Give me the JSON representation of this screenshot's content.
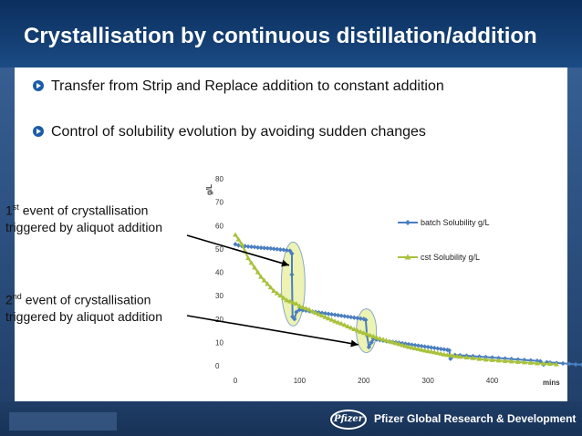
{
  "slide": {
    "title": "Crystallisation by continuous distillation/addition",
    "bullets": [
      "Transfer from Strip and Replace addition to constant addition",
      "Control of solubility evolution by avoiding sudden changes"
    ],
    "callouts": [
      {
        "sup": "st",
        "num": "1",
        "line1_rest": " event of crystallisation",
        "line2": "triggered by aliquot addition"
      },
      {
        "sup": "nd",
        "num": "2",
        "line1_rest": " event of crystallisation",
        "line2": "triggered by aliquot addition"
      }
    ],
    "footer": {
      "logo": "Pfizer",
      "text": "Pfizer Global Research & Development"
    }
  },
  "colors": {
    "title_bar": "#143f74",
    "batch": "#4a7ec0",
    "cst": "#a8c23c",
    "ellipse_fill": "#e6ef9a",
    "ellipse_stroke": "#8aa8c8"
  },
  "chart_data": {
    "type": "line",
    "ylabel": "g/L",
    "xlabel": "mins",
    "xlim": [
      0,
      500
    ],
    "ylim": [
      0,
      80
    ],
    "x_ticks": [
      0,
      100,
      200,
      300,
      400
    ],
    "y_ticks": [
      0,
      10,
      20,
      30,
      40,
      50,
      60,
      70,
      80
    ],
    "legend_position": "right",
    "grid": false,
    "series": [
      {
        "name": "batch Solubility g/L",
        "color": "#4a7ec0",
        "marker": "diamond",
        "points": [
          [
            0,
            52
          ],
          [
            5,
            51.5
          ],
          [
            10,
            51.3
          ],
          [
            15,
            51.2
          ],
          [
            20,
            51
          ],
          [
            25,
            50.9
          ],
          [
            30,
            50.8
          ],
          [
            35,
            50.6
          ],
          [
            40,
            50.5
          ],
          [
            45,
            50.4
          ],
          [
            50,
            50.3
          ],
          [
            55,
            50.2
          ],
          [
            60,
            50
          ],
          [
            65,
            49.9
          ],
          [
            70,
            49.7
          ],
          [
            75,
            49.6
          ],
          [
            80,
            49.4
          ],
          [
            85,
            49.2
          ],
          [
            88,
            48
          ],
          [
            88,
            39
          ],
          [
            89,
            21
          ],
          [
            92,
            20
          ],
          [
            95,
            23
          ],
          [
            100,
            24
          ],
          [
            105,
            23.8
          ],
          [
            110,
            23.6
          ],
          [
            115,
            23.4
          ],
          [
            120,
            23.2
          ],
          [
            125,
            23
          ],
          [
            130,
            22.8
          ],
          [
            135,
            22.6
          ],
          [
            140,
            22.4
          ],
          [
            145,
            22.2
          ],
          [
            150,
            22
          ],
          [
            155,
            21.8
          ],
          [
            160,
            21.6
          ],
          [
            165,
            21.4
          ],
          [
            170,
            21.2
          ],
          [
            175,
            21
          ],
          [
            180,
            20.8
          ],
          [
            185,
            20.6
          ],
          [
            190,
            20.4
          ],
          [
            195,
            20.2
          ],
          [
            200,
            20
          ],
          [
            203,
            19.6
          ],
          [
            205,
            13
          ],
          [
            208,
            8
          ],
          [
            212,
            10
          ],
          [
            215,
            11.5
          ],
          [
            220,
            11.2
          ],
          [
            225,
            11
          ],
          [
            230,
            10.8
          ],
          [
            235,
            10.6
          ],
          [
            240,
            10.4
          ],
          [
            245,
            10.2
          ],
          [
            250,
            10
          ],
          [
            255,
            9.8
          ],
          [
            260,
            9.6
          ],
          [
            265,
            9.4
          ],
          [
            270,
            9.2
          ],
          [
            275,
            9
          ],
          [
            280,
            8.8
          ],
          [
            285,
            8.6
          ],
          [
            290,
            8.4
          ],
          [
            295,
            8.2
          ],
          [
            300,
            8
          ],
          [
            305,
            7.8
          ],
          [
            310,
            7.6
          ],
          [
            315,
            7.4
          ],
          [
            320,
            7.2
          ],
          [
            325,
            7
          ],
          [
            330,
            6.8
          ],
          [
            333,
            6.6
          ],
          [
            335,
            3
          ],
          [
            338,
            4
          ],
          [
            342,
            4.6
          ],
          [
            350,
            4.5
          ],
          [
            360,
            4.3
          ],
          [
            370,
            4.1
          ],
          [
            380,
            3.9
          ],
          [
            390,
            3.7
          ],
          [
            400,
            3.5
          ],
          [
            410,
            3.3
          ],
          [
            420,
            3.1
          ],
          [
            430,
            2.9
          ],
          [
            440,
            2.7
          ],
          [
            450,
            2.5
          ],
          [
            460,
            2.3
          ],
          [
            470,
            2.1
          ],
          [
            475,
            1.9
          ],
          [
            480,
            0.5
          ],
          [
            485,
            1.5
          ],
          [
            490,
            1.4
          ],
          [
            500,
            1.2
          ],
          [
            510,
            1
          ],
          [
            520,
            0.8
          ],
          [
            530,
            0.6
          ],
          [
            540,
            0.5
          ],
          [
            550,
            0.4
          ]
        ]
      },
      {
        "name": "cst Solubility g/L",
        "color": "#a8c23c",
        "marker": "triangle",
        "points": [
          [
            0,
            56
          ],
          [
            5,
            54
          ],
          [
            10,
            52
          ],
          [
            15,
            49
          ],
          [
            20,
            46
          ],
          [
            25,
            44
          ],
          [
            30,
            42
          ],
          [
            35,
            40
          ],
          [
            40,
            38
          ],
          [
            45,
            36.5
          ],
          [
            50,
            35
          ],
          [
            55,
            33.5
          ],
          [
            60,
            32
          ],
          [
            65,
            31
          ],
          [
            70,
            30
          ],
          [
            75,
            29
          ],
          [
            80,
            28
          ],
          [
            85,
            27.5
          ],
          [
            90,
            27
          ],
          [
            95,
            26.5
          ],
          [
            100,
            25.5
          ],
          [
            105,
            25
          ],
          [
            110,
            24.5
          ],
          [
            115,
            24
          ],
          [
            120,
            23.2
          ],
          [
            125,
            22.6
          ],
          [
            130,
            22
          ],
          [
            135,
            21.4
          ],
          [
            140,
            20.8
          ],
          [
            145,
            20.2
          ],
          [
            150,
            19.6
          ],
          [
            155,
            19
          ],
          [
            160,
            18.5
          ],
          [
            165,
            18
          ],
          [
            170,
            17.4
          ],
          [
            175,
            16.8
          ],
          [
            180,
            16.2
          ],
          [
            185,
            15.6
          ],
          [
            190,
            15
          ],
          [
            195,
            14.5
          ],
          [
            200,
            14
          ],
          [
            205,
            13.5
          ],
          [
            210,
            13
          ],
          [
            215,
            12.5
          ],
          [
            220,
            12
          ],
          [
            225,
            11.6
          ],
          [
            230,
            11.2
          ],
          [
            235,
            10.8
          ],
          [
            240,
            10.4
          ],
          [
            245,
            10
          ],
          [
            250,
            9.6
          ],
          [
            255,
            9.2
          ],
          [
            260,
            8.8
          ],
          [
            265,
            8.4
          ],
          [
            270,
            8
          ],
          [
            275,
            7.7
          ],
          [
            280,
            7.4
          ],
          [
            285,
            7.1
          ],
          [
            290,
            6.8
          ],
          [
            295,
            6.5
          ],
          [
            300,
            6.2
          ],
          [
            305,
            6
          ],
          [
            310,
            5.7
          ],
          [
            315,
            5.4
          ],
          [
            320,
            5.1
          ],
          [
            325,
            4.8
          ],
          [
            330,
            4.6
          ],
          [
            335,
            4.4
          ],
          [
            340,
            4.2
          ],
          [
            345,
            4
          ],
          [
            350,
            3.8
          ],
          [
            360,
            3.5
          ],
          [
            370,
            3.2
          ],
          [
            380,
            2.9
          ],
          [
            390,
            2.6
          ],
          [
            400,
            2.4
          ],
          [
            410,
            2.2
          ],
          [
            420,
            2
          ],
          [
            430,
            1.8
          ],
          [
            440,
            1.6
          ],
          [
            450,
            1.4
          ],
          [
            460,
            1.2
          ],
          [
            470,
            1
          ],
          [
            480,
            0.9
          ],
          [
            490,
            0.8
          ],
          [
            500,
            0.6
          ]
        ]
      }
    ]
  }
}
